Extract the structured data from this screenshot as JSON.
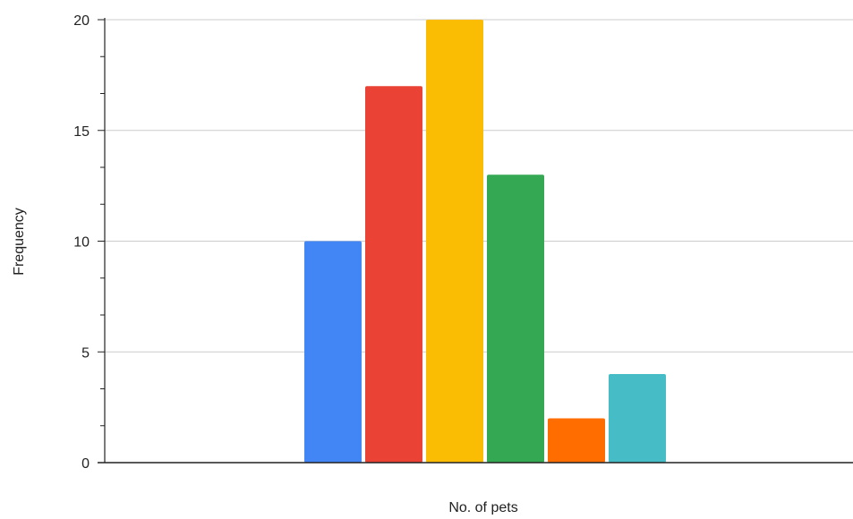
{
  "chart_data": {
    "type": "bar",
    "title": "",
    "xlabel": "No. of pets",
    "ylabel": "Frequency",
    "ylim": [
      0,
      20
    ],
    "yticks": [
      0,
      5,
      10,
      15,
      20
    ],
    "y_minor_step": 1.666667,
    "grid": true,
    "legend": "none",
    "categories": [
      "",
      "",
      "",
      "",
      "",
      ""
    ],
    "values": [
      10,
      17,
      20,
      13,
      2,
      4
    ],
    "colors": [
      "#4285F4",
      "#EA4335",
      "#FBBC04",
      "#34A853",
      "#FF6D01",
      "#46BDC6"
    ]
  }
}
